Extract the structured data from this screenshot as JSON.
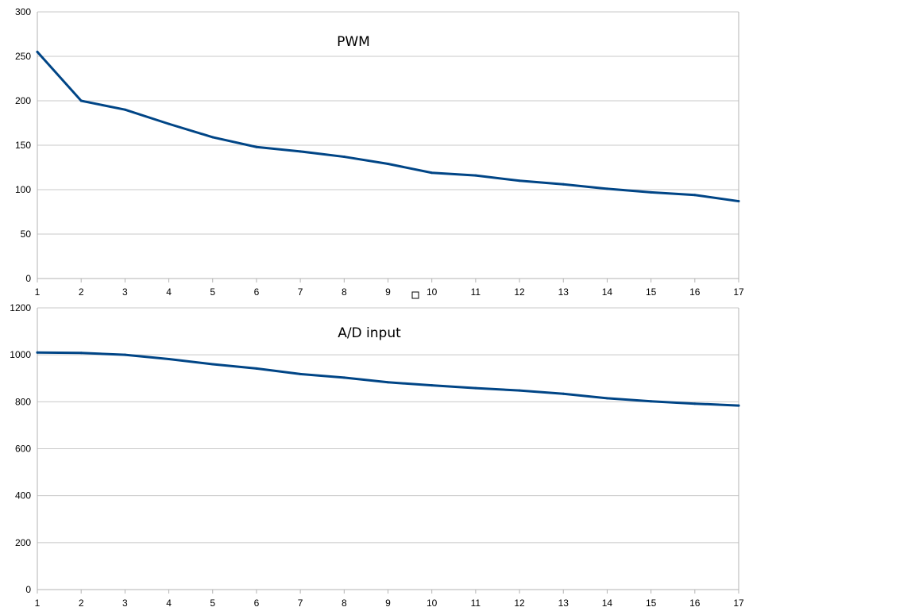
{
  "colors": {
    "series": "#004586",
    "grid": "#c8c8c8",
    "axis": "#b3b3b3"
  },
  "chart_data": [
    {
      "type": "line",
      "title": "PWM",
      "xlabel": "",
      "ylabel": "",
      "x": [
        1,
        2,
        3,
        4,
        5,
        6,
        7,
        8,
        9,
        10,
        11,
        12,
        13,
        14,
        15,
        16,
        17
      ],
      "ylim": [
        0,
        300
      ],
      "yticks": [
        0,
        50,
        100,
        150,
        200,
        250,
        300
      ],
      "grid": true,
      "legend": "none",
      "series": [
        {
          "values": [
            255,
            200,
            190,
            174,
            159,
            148,
            143,
            137,
            129,
            119,
            116,
            110,
            106,
            101,
            97,
            94,
            87
          ]
        }
      ]
    },
    {
      "type": "line",
      "title": "A/D input",
      "xlabel": "",
      "ylabel": "",
      "x": [
        1,
        2,
        3,
        4,
        5,
        6,
        7,
        8,
        9,
        10,
        11,
        12,
        13,
        14,
        15,
        16,
        17
      ],
      "ylim": [
        0,
        1200
      ],
      "yticks": [
        0,
        200,
        400,
        600,
        800,
        1000,
        1200
      ],
      "grid": true,
      "legend": "none",
      "series": [
        {
          "values": [
            1010,
            1008,
            1000,
            982,
            960,
            942,
            918,
            903,
            883,
            870,
            858,
            848,
            834,
            815,
            802,
            792,
            784
          ]
        }
      ]
    }
  ]
}
